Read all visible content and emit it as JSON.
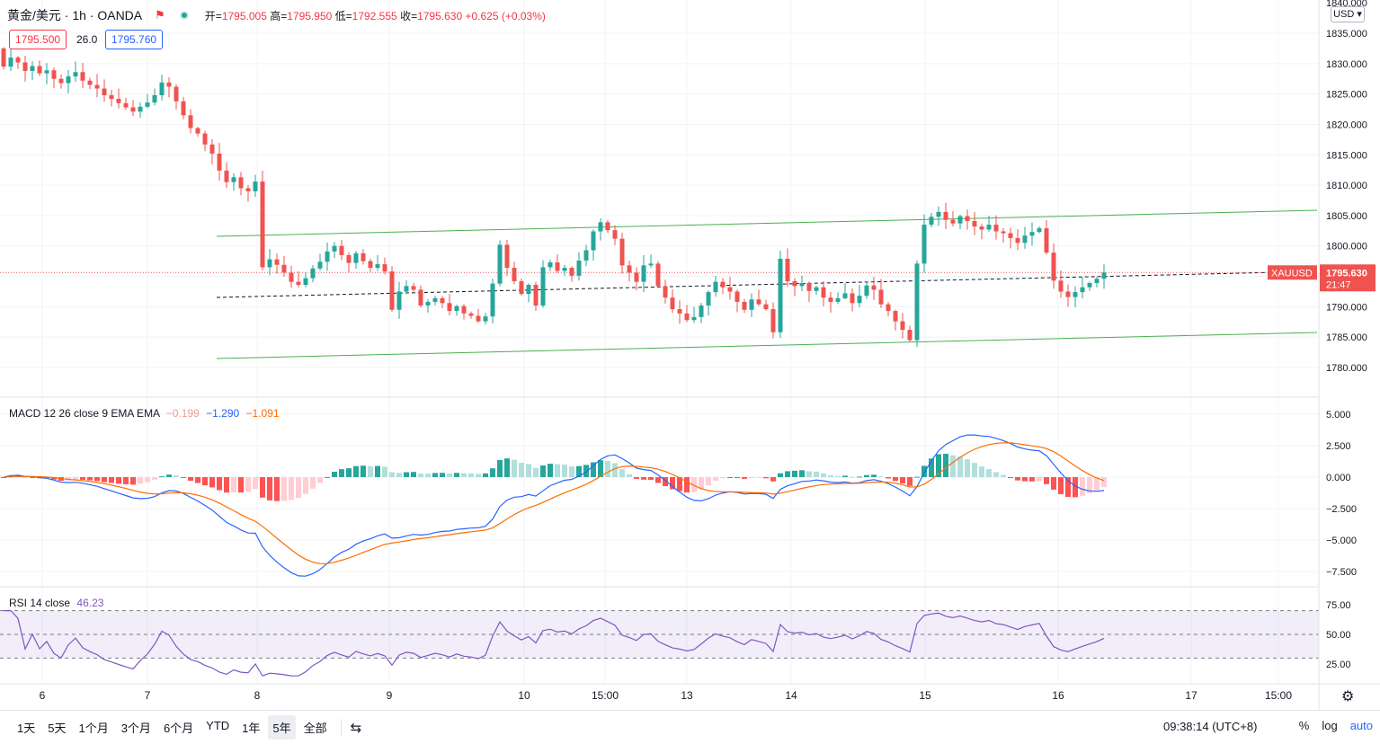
{
  "header": {
    "symbol_title": "黄金/美元 · 1h · OANDA",
    "ohlc_open_label": "开=",
    "ohlc_open": "1795.005",
    "ohlc_high_label": "高=",
    "ohlc_high": "1795.950",
    "ohlc_low_label": "低=",
    "ohlc_low": "1792.555",
    "ohlc_close_label": "收=",
    "ohlc_close": "1795.630",
    "ohlc_change": "+0.625 (+0.03%)",
    "bid": "1795.500",
    "spread": "26.0",
    "ask": "1795.760",
    "currency": "USD"
  },
  "macd_legend": {
    "label": "MACD 12 26 close 9 EMA EMA",
    "hist": "−0.199",
    "macd": "−1.290",
    "signal": "−1.091"
  },
  "rsi_legend": {
    "label": "RSI 14 close",
    "value": "46.23"
  },
  "price_axis": [
    "1840.000",
    "1835.000",
    "1830.000",
    "1825.000",
    "1820.000",
    "1815.000",
    "1810.000",
    "1805.000",
    "1800.000",
    "1795.000",
    "1790.000",
    "1785.000",
    "1780.000"
  ],
  "macd_axis": [
    "5.000",
    "2.500",
    "0.000",
    "−2.500",
    "−5.000",
    "−7.500"
  ],
  "rsi_axis": [
    "75.00",
    "50.00",
    "25.00"
  ],
  "time_axis": [
    {
      "label": "6",
      "x": 47
    },
    {
      "label": "7",
      "x": 164
    },
    {
      "label": "8",
      "x": 286
    },
    {
      "label": "9",
      "x": 433
    },
    {
      "label": "10",
      "x": 583
    },
    {
      "label": "15:00",
      "x": 673
    },
    {
      "label": "13",
      "x": 764
    },
    {
      "label": "14",
      "x": 880
    },
    {
      "label": "15",
      "x": 1029
    },
    {
      "label": "16",
      "x": 1177
    },
    {
      "label": "17",
      "x": 1325
    },
    {
      "label": "15:00",
      "x": 1422
    }
  ],
  "last_price": {
    "symbol": "XAUUSD",
    "price": "1795.630",
    "countdown": "21:47"
  },
  "colors": {
    "up": "#26a69a",
    "down": "#ef5350",
    "macd": "#2962ff",
    "signal": "#ff6d00",
    "rsi": "#7e57c2",
    "channel": "#4caf50"
  },
  "timeframes": [
    "1天",
    "5天",
    "1个月",
    "3个月",
    "6个月",
    "YTD",
    "1年",
    "5年",
    "全部"
  ],
  "active_timeframe": "5年",
  "bottom": {
    "clock": "09:38:14 (UTC+8)",
    "percent": "%",
    "log": "log",
    "auto": "auto"
  },
  "chart_data": {
    "type": "candlestick",
    "ylim": [
      1778,
      1841
    ],
    "close_series_note": "approximate hourly closes",
    "closes": [
      1829.5,
      1831,
      1830.2,
      1828.8,
      1829.6,
      1828.4,
      1828.9,
      1827.5,
      1826.8,
      1827.9,
      1828.6,
      1827.2,
      1826.5,
      1825.9,
      1824.8,
      1824.2,
      1823.5,
      1822.8,
      1822.1,
      1822.9,
      1823.6,
      1824.8,
      1826.9,
      1826.2,
      1823.8,
      1821.5,
      1819.4,
      1818.5,
      1816.7,
      1815.2,
      1812.4,
      1810.5,
      1811.3,
      1809.5,
      1809.0,
      1810.6,
      1796.5,
      1797.8,
      1796.9,
      1795.6,
      1794.1,
      1793.6,
      1794.7,
      1796.3,
      1797.4,
      1799.1,
      1800.0,
      1798.5,
      1797.2,
      1798.8,
      1797.5,
      1796.4,
      1797.0,
      1795.8,
      1789.5,
      1792.5,
      1793.4,
      1792.8,
      1790.2,
      1790.8,
      1791.4,
      1790.6,
      1789.3,
      1790.1,
      1788.9,
      1788.5,
      1787.6,
      1788.4,
      1793.8,
      1800.2,
      1796.4,
      1794.2,
      1792.1,
      1793.6,
      1790.2,
      1796.5,
      1797.3,
      1795.9,
      1796.4,
      1795.1,
      1797.6,
      1799.3,
      1802.4,
      1803.9,
      1802.6,
      1801.2,
      1796.8,
      1795.6,
      1794.1,
      1796.8,
      1797.1,
      1793.4,
      1791.5,
      1789.6,
      1788.9,
      1787.8,
      1788.3,
      1790.2,
      1792.4,
      1794.1,
      1793.2,
      1792.5,
      1790.8,
      1789.5,
      1791.2,
      1790.4,
      1789.6,
      1785.8,
      1797.9,
      1794.2,
      1793.4,
      1793.9,
      1792.6,
      1793.2,
      1791.5,
      1790.8,
      1791.4,
      1792.2,
      1790.6,
      1791.8,
      1793.5,
      1792.8,
      1790.4,
      1789.3,
      1787.6,
      1786.2,
      1784.5,
      1797.1,
      1803.5,
      1804.8,
      1805.6,
      1804.3,
      1803.7,
      1804.9,
      1804.1,
      1803.2,
      1802.7,
      1803.5,
      1802.4,
      1802.1,
      1801.3,
      1800.5,
      1801.7,
      1802.3,
      1802.9,
      1798.9,
      1794.3,
      1792.5,
      1791.6,
      1792.4,
      1793.2,
      1793.9,
      1794.6,
      1795.63
    ]
  }
}
